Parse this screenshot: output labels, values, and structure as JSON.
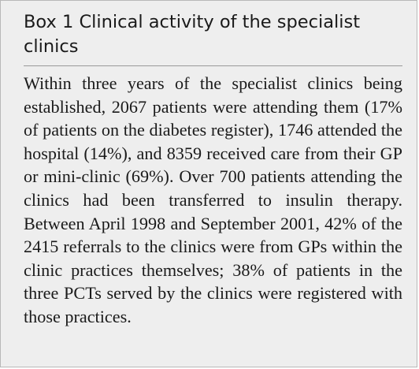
{
  "box": {
    "title": "Box 1  Clinical activity of the specialist clinics",
    "body": "Within three years of the specialist clinics being established, 2067 patients were attending them (17% of patients on the diabetes register), 1746 attended the hospital (14%), and 8359 received care from their GP or mini-clinic (69%). Over 700 patients attending the clinics had been transferred to insulin therapy. Between April 1998 and September 2001, 42% of the 2415 referrals to the clinics were from GPs within the clinic practices themselves; 38% of patients in the three PCTs served by the clinics were registered with those practices."
  },
  "colors": {
    "background": "#eeeeee",
    "border": "#b8b8b8",
    "divider": "#9a9a9a",
    "text": "#1a1a1a"
  }
}
